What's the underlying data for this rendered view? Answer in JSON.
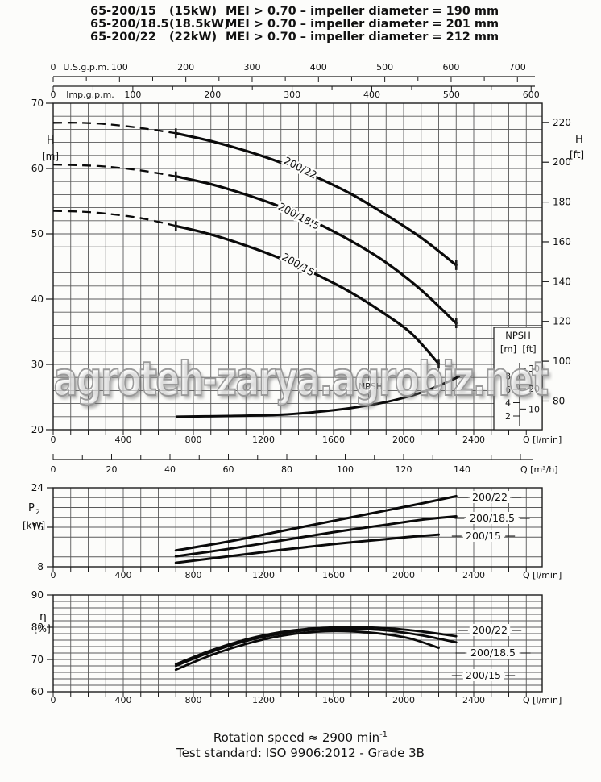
{
  "header": {
    "rows": [
      {
        "model": "65-200/15",
        "power": "(15kW)",
        "spec": "MEI > 0.70 – impeller diameter = 190 mm"
      },
      {
        "model": "65-200/18.5",
        "power": "(18.5kW)",
        "spec": "MEI > 0.70 – impeller diameter = 201 mm"
      },
      {
        "model": "65-200/22",
        "power": "(22kW)",
        "spec": "MEI > 0.70 – impeller diameter = 212 mm"
      }
    ]
  },
  "watermark": {
    "text": "agroteh-zarya.agrobiz.net"
  },
  "footer": {
    "rotation_label": "Rotation speed ≈ 2900 min",
    "rotation_sup": "-1",
    "test_standard": "Test standard: ISO 9906:2012 - Grade 3B"
  },
  "chart_data": [
    {
      "type": "line",
      "name": "head-capacity-curves",
      "x_axis": {
        "label": "Q [l/min]",
        "range": [
          0,
          2790
        ],
        "major_ticks": [
          0,
          400,
          800,
          1200,
          1600,
          2000,
          2400
        ],
        "minor_step": 100
      },
      "y_axis_left": {
        "label": "H",
        "unit": "[m]",
        "range": [
          20,
          70
        ],
        "ticks": [
          20,
          30,
          40,
          50,
          60,
          70
        ],
        "grid_step": 2
      },
      "y_axis_right": {
        "label": "H",
        "unit": "[ft]",
        "ticks": [
          80,
          100,
          120,
          140,
          160,
          180,
          200,
          220
        ]
      },
      "top_axes": [
        {
          "label": "U.S.g.p.m.",
          "ticks": [
            0,
            100,
            200,
            300,
            400,
            500,
            600,
            700
          ],
          "minor_step": 50,
          "lmin_per_unit": 3.785
        },
        {
          "label": "Imp.g.p.m.",
          "ticks": [
            0,
            100,
            200,
            300,
            400,
            500,
            600
          ],
          "minor_step": 50,
          "lmin_per_unit": 4.546
        }
      ],
      "m3h_axis": {
        "label": "Q [m³/h]",
        "ticks": [
          0,
          20,
          40,
          60,
          80,
          100,
          120,
          140
        ],
        "minor_step": 10,
        "lmin_per_unit": 16.667
      },
      "series": [
        {
          "name": "200/22",
          "dashed": [
            [
              0,
              67
            ],
            [
              150,
              67
            ],
            [
              300,
              66.8
            ],
            [
              500,
              66.2
            ],
            [
              700,
              65.4
            ]
          ],
          "points": [
            [
              700,
              65.4
            ],
            [
              900,
              64.2
            ],
            [
              1100,
              62.7
            ],
            [
              1300,
              60.9
            ],
            [
              1500,
              58.7
            ],
            [
              1700,
              56.1
            ],
            [
              1900,
              52.9
            ],
            [
              2100,
              49.4
            ],
            [
              2300,
              45.2
            ]
          ]
        },
        {
          "name": "200/18.5",
          "dashed": [
            [
              0,
              60.6
            ],
            [
              150,
              60.5
            ],
            [
              300,
              60.3
            ],
            [
              500,
              59.7
            ],
            [
              700,
              58.8
            ]
          ],
          "points": [
            [
              700,
              58.8
            ],
            [
              900,
              57.6
            ],
            [
              1100,
              56.0
            ],
            [
              1300,
              54.1
            ],
            [
              1500,
              51.7
            ],
            [
              1700,
              48.9
            ],
            [
              1900,
              45.6
            ],
            [
              2100,
              41.4
            ],
            [
              2300,
              36.3
            ]
          ]
        },
        {
          "name": "200/15",
          "dashed": [
            [
              0,
              53.5
            ],
            [
              150,
              53.4
            ],
            [
              300,
              53.1
            ],
            [
              500,
              52.4
            ],
            [
              700,
              51.2
            ]
          ],
          "points": [
            [
              700,
              51.2
            ],
            [
              900,
              49.9
            ],
            [
              1100,
              48.2
            ],
            [
              1300,
              46.2
            ],
            [
              1500,
              43.8
            ],
            [
              1700,
              41.0
            ],
            [
              1900,
              37.6
            ],
            [
              2050,
              34.6
            ],
            [
              2200,
              30.1
            ]
          ]
        }
      ],
      "npsh": {
        "curve_label": "NPSH",
        "box_title": "NPSH",
        "unit_m": "[m]",
        "unit_ft": "[ft]",
        "m_ticks": [
          2,
          4,
          6,
          8
        ],
        "ft_ticks": [
          10,
          20,
          30
        ],
        "points": [
          [
            700,
            1.9
          ],
          [
            1000,
            2.0
          ],
          [
            1300,
            2.2
          ],
          [
            1500,
            2.6
          ],
          [
            1700,
            3.2
          ],
          [
            1900,
            4.1
          ],
          [
            2050,
            5.1
          ],
          [
            2150,
            6.0
          ],
          [
            2250,
            7.1
          ],
          [
            2320,
            8.0
          ]
        ]
      }
    },
    {
      "type": "line",
      "name": "power-curves",
      "x_axis": {
        "label": "Q [l/min]",
        "major_ticks": [
          0,
          400,
          800,
          1200,
          1600,
          2000,
          2400
        ],
        "minor_step": 100
      },
      "y_axis": {
        "label": "P",
        "sub": "2",
        "unit": "[kW]",
        "range": [
          8,
          24
        ],
        "ticks": [
          8,
          16,
          24
        ],
        "grid_step": 2
      },
      "series": [
        {
          "name": "200/22",
          "points": [
            [
              700,
              11.3
            ],
            [
              1000,
              13.1
            ],
            [
              1300,
              15.2
            ],
            [
              1600,
              17.3
            ],
            [
              1900,
              19.4
            ],
            [
              2100,
              20.8
            ],
            [
              2300,
              22.3
            ]
          ]
        },
        {
          "name": "200/18.5",
          "points": [
            [
              700,
              10.1
            ],
            [
              1000,
              11.6
            ],
            [
              1300,
              13.3
            ],
            [
              1600,
              15.0
            ],
            [
              1900,
              16.5
            ],
            [
              2100,
              17.5
            ],
            [
              2300,
              18.2
            ]
          ]
        },
        {
          "name": "200/15",
          "points": [
            [
              700,
              8.8
            ],
            [
              1000,
              10.1
            ],
            [
              1300,
              11.4
            ],
            [
              1600,
              12.6
            ],
            [
              1900,
              13.6
            ],
            [
              2050,
              14.1
            ],
            [
              2200,
              14.5
            ]
          ]
        }
      ]
    },
    {
      "type": "line",
      "name": "efficiency-curves",
      "x_axis": {
        "label": "Q [l/min]",
        "major_ticks": [
          0,
          400,
          800,
          1200,
          1600,
          2000,
          2400
        ],
        "minor_step": 100
      },
      "y_axis": {
        "label": "η",
        "unit": "[%]",
        "range": [
          60,
          90
        ],
        "ticks": [
          60,
          70,
          80,
          90
        ],
        "grid_step": 2
      },
      "series": [
        {
          "name": "200/22",
          "points": [
            [
              700,
              68.5
            ],
            [
              900,
              72.8
            ],
            [
              1100,
              76.2
            ],
            [
              1300,
              78.5
            ],
            [
              1500,
              79.7
            ],
            [
              1700,
              80.0
            ],
            [
              1900,
              79.7
            ],
            [
              2100,
              78.7
            ],
            [
              2300,
              77.2
            ]
          ]
        },
        {
          "name": "200/18.5",
          "points": [
            [
              700,
              68.0
            ],
            [
              900,
              72.3
            ],
            [
              1100,
              75.7
            ],
            [
              1300,
              78.0
            ],
            [
              1500,
              79.3
            ],
            [
              1700,
              79.5
            ],
            [
              1900,
              79.0
            ],
            [
              2100,
              77.5
            ],
            [
              2300,
              75.3
            ]
          ]
        },
        {
          "name": "200/15",
          "points": [
            [
              700,
              66.8
            ],
            [
              900,
              71.3
            ],
            [
              1100,
              74.8
            ],
            [
              1300,
              77.3
            ],
            [
              1500,
              78.6
            ],
            [
              1700,
              78.7
            ],
            [
              1900,
              77.8
            ],
            [
              2050,
              76.3
            ],
            [
              2200,
              73.6
            ]
          ]
        }
      ]
    }
  ]
}
